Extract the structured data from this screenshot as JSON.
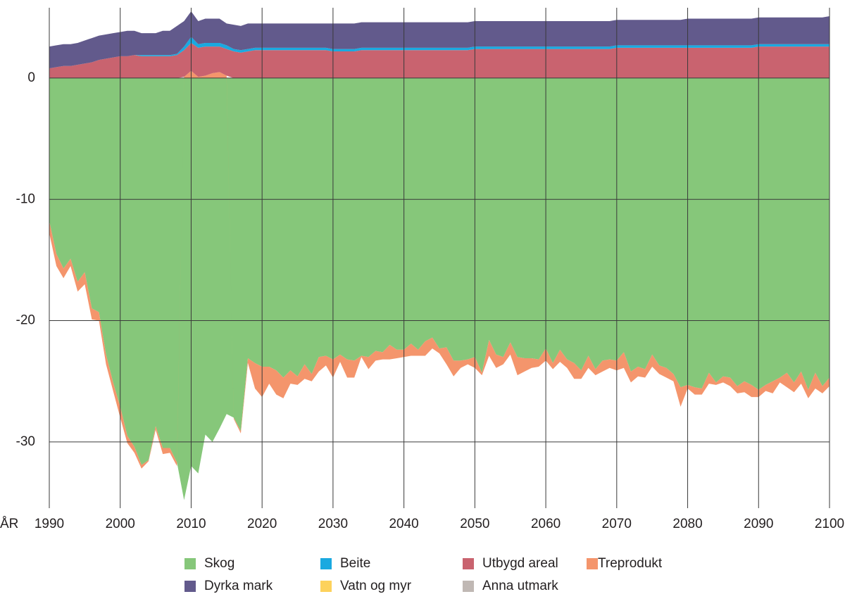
{
  "chart_data": {
    "type": "area",
    "stacked": true,
    "x_label": "ÅR",
    "x": [
      1990,
      1991,
      1992,
      1993,
      1994,
      1995,
      1996,
      1997,
      1998,
      1999,
      2000,
      2001,
      2002,
      2003,
      2004,
      2005,
      2006,
      2007,
      2008,
      2009,
      2010,
      2011,
      2012,
      2013,
      2014,
      2015,
      2016,
      2017,
      2018,
      2019,
      2020,
      2021,
      2022,
      2023,
      2024,
      2025,
      2026,
      2027,
      2028,
      2029,
      2030,
      2031,
      2032,
      2033,
      2034,
      2035,
      2036,
      2037,
      2038,
      2039,
      2040,
      2041,
      2042,
      2043,
      2044,
      2045,
      2046,
      2047,
      2048,
      2049,
      2050,
      2051,
      2052,
      2053,
      2054,
      2055,
      2056,
      2057,
      2058,
      2059,
      2060,
      2061,
      2062,
      2063,
      2064,
      2065,
      2066,
      2067,
      2068,
      2069,
      2070,
      2071,
      2072,
      2073,
      2074,
      2075,
      2076,
      2077,
      2078,
      2079,
      2080,
      2081,
      2082,
      2083,
      2084,
      2085,
      2086,
      2087,
      2088,
      2089,
      2090,
      2091,
      2092,
      2093,
      2094,
      2095,
      2096,
      2097,
      2098,
      2099,
      2100
    ],
    "series": [
      {
        "name": "Skog",
        "color": "#86c77a",
        "values": [
          -11.8,
          -14.5,
          -15.7,
          -14.9,
          -16.8,
          -16.0,
          -19.0,
          -19.3,
          -22.8,
          -25.1,
          -27.1,
          -29.5,
          -30.4,
          -31.9,
          -31.5,
          -28.7,
          -30.5,
          -30.5,
          -31.7,
          -34.8,
          -32.0,
          -32.6,
          -29.4,
          -30.0,
          -28.9,
          -27.7,
          -28.0,
          -29.1,
          -23.1,
          -23.5,
          -23.8,
          -23.8,
          -24.1,
          -24.7,
          -24.1,
          -24.6,
          -23.6,
          -24.4,
          -23.0,
          -22.9,
          -23.2,
          -22.8,
          -23.2,
          -23.3,
          -22.9,
          -23.0,
          -22.5,
          -22.6,
          -22.0,
          -22.4,
          -22.4,
          -21.9,
          -22.4,
          -21.7,
          -21.4,
          -22.3,
          -22.2,
          -23.3,
          -23.3,
          -23.2,
          -23.0,
          -24.3,
          -21.6,
          -22.8,
          -23.0,
          -21.8,
          -23.0,
          -23.1,
          -23.1,
          -23.2,
          -22.3,
          -23.5,
          -22.4,
          -23.2,
          -23.5,
          -24.1,
          -22.9,
          -24.0,
          -23.3,
          -23.2,
          -23.3,
          -22.6,
          -24.2,
          -23.8,
          -24.0,
          -22.8,
          -23.7,
          -23.9,
          -24.4,
          -25.5,
          -25.3,
          -25.5,
          -25.6,
          -24.3,
          -25.1,
          -24.6,
          -24.7,
          -25.4,
          -25.0,
          -25.3,
          -25.7,
          -25.3,
          -25.0,
          -24.7,
          -24.3,
          -25.1,
          -24.2,
          -25.7,
          -24.3,
          -25.4,
          -24.7
        ]
      },
      {
        "name": "Treprodukt",
        "color": "#f4956c",
        "values": [
          -1.0,
          -1.0,
          -0.8,
          -0.6,
          -0.8,
          -1.0,
          -0.9,
          -0.7,
          -0.8,
          -0.7,
          -0.9,
          -0.6,
          -0.5,
          -0.3,
          -0.1,
          -0.3,
          -0.5,
          -0.4,
          -0.3,
          0.1,
          0.6,
          0.1,
          0.2,
          0.4,
          0.5,
          0.2,
          -0.1,
          -0.2,
          -0.4,
          -2.1,
          -2.5,
          -1.4,
          -2.0,
          -1.7,
          -1.1,
          -0.7,
          -1.2,
          -0.6,
          -1.2,
          -0.8,
          -1.5,
          -0.6,
          -1.5,
          -1.4,
          -0.1,
          -1.0,
          -0.8,
          -0.6,
          -1.2,
          -0.7,
          -0.6,
          -1.0,
          -0.5,
          -1.2,
          -0.9,
          -0.4,
          -1.4,
          -1.3,
          -0.6,
          -0.4,
          -0.9,
          -0.2,
          -1.3,
          -1.1,
          -0.6,
          -1.0,
          -1.5,
          -1.1,
          -0.8,
          -0.6,
          -1.0,
          -0.5,
          -1.0,
          -0.7,
          -1.3,
          -0.7,
          -1.0,
          -0.5,
          -0.9,
          -0.7,
          -0.8,
          -1.3,
          -0.9,
          -0.8,
          -0.7,
          -1.0,
          -0.7,
          -0.8,
          -0.6,
          -1.6,
          -0.3,
          -0.6,
          -0.5,
          -0.9,
          -0.2,
          -0.5,
          -0.7,
          -0.6,
          -0.9,
          -1.0,
          -0.6,
          -0.5,
          -1.0,
          -0.4,
          -1.2,
          -0.8,
          -1.0,
          -0.7,
          -1.3,
          -0.6,
          -0.7
        ]
      },
      {
        "name": "Utbygd areal",
        "color": "#c9636f",
        "values": [
          0.8,
          0.9,
          1.0,
          1.0,
          1.1,
          1.2,
          1.3,
          1.5,
          1.6,
          1.7,
          1.8,
          1.8,
          1.9,
          1.8,
          1.8,
          1.8,
          1.8,
          1.8,
          1.9,
          2.2,
          2.3,
          2.4,
          2.4,
          2.2,
          2.1,
          2.2,
          2.2,
          2.1,
          2.2,
          2.3,
          2.3,
          2.3,
          2.3,
          2.3,
          2.3,
          2.3,
          2.3,
          2.3,
          2.3,
          2.3,
          2.2,
          2.2,
          2.2,
          2.2,
          2.3,
          2.3,
          2.3,
          2.3,
          2.3,
          2.3,
          2.3,
          2.3,
          2.3,
          2.3,
          2.3,
          2.3,
          2.3,
          2.3,
          2.3,
          2.3,
          2.4,
          2.4,
          2.4,
          2.4,
          2.4,
          2.4,
          2.4,
          2.4,
          2.4,
          2.4,
          2.4,
          2.4,
          2.4,
          2.4,
          2.4,
          2.4,
          2.4,
          2.4,
          2.4,
          2.4,
          2.5,
          2.5,
          2.5,
          2.5,
          2.5,
          2.5,
          2.5,
          2.5,
          2.5,
          2.5,
          2.5,
          2.5,
          2.5,
          2.5,
          2.5,
          2.5,
          2.5,
          2.5,
          2.5,
          2.5,
          2.6,
          2.6,
          2.6,
          2.6,
          2.6,
          2.6,
          2.6,
          2.6,
          2.6,
          2.6,
          2.6
        ]
      },
      {
        "name": "Beite",
        "color": "#1aa9e0",
        "values": [
          0,
          0,
          0,
          0,
          0,
          0,
          0,
          0,
          0,
          0,
          0,
          0,
          0,
          0.1,
          0.1,
          0.1,
          0.1,
          0.1,
          0.1,
          0.3,
          0.5,
          0.3,
          0.3,
          0.3,
          0.3,
          0.3,
          0.2,
          0.2,
          0.2,
          0.2,
          0.2,
          0.2,
          0.2,
          0.2,
          0.2,
          0.2,
          0.2,
          0.2,
          0.2,
          0.2,
          0.2,
          0.2,
          0.2,
          0.2,
          0.2,
          0.2,
          0.2,
          0.2,
          0.2,
          0.2,
          0.2,
          0.2,
          0.2,
          0.2,
          0.2,
          0.2,
          0.2,
          0.2,
          0.2,
          0.2,
          0.2,
          0.2,
          0.2,
          0.2,
          0.2,
          0.2,
          0.2,
          0.2,
          0.2,
          0.2,
          0.2,
          0.2,
          0.2,
          0.2,
          0.2,
          0.2,
          0.2,
          0.2,
          0.2,
          0.2,
          0.2,
          0.2,
          0.2,
          0.2,
          0.2,
          0.2,
          0.2,
          0.2,
          0.2,
          0.2,
          0.2,
          0.2,
          0.2,
          0.2,
          0.2,
          0.2,
          0.2,
          0.2,
          0.2,
          0.2,
          0.2,
          0.2,
          0.2,
          0.2,
          0.2,
          0.2,
          0.2,
          0.2,
          0.2,
          0.2,
          0.2
        ]
      },
      {
        "name": "Vatn og myr",
        "color": "#fdd25c",
        "values": [
          0,
          0,
          0,
          0,
          0,
          0,
          0,
          0,
          0,
          0,
          0,
          0,
          0,
          0,
          0,
          0,
          0,
          0,
          0,
          0,
          0,
          0,
          0,
          0,
          0,
          0,
          0,
          0,
          0,
          0,
          0,
          0,
          0,
          0,
          0,
          0,
          0,
          0,
          0,
          0,
          0,
          0,
          0,
          0,
          0,
          0,
          0,
          0,
          0,
          0,
          0,
          0,
          0,
          0,
          0,
          0,
          0,
          0,
          0,
          0,
          0,
          0,
          0,
          0,
          0,
          0,
          0,
          0,
          0,
          0,
          0,
          0,
          0,
          0,
          0,
          0,
          0,
          0,
          0,
          0,
          0,
          0,
          0,
          0,
          0,
          0,
          0,
          0,
          0,
          0,
          0,
          0,
          0,
          0,
          0,
          0,
          0,
          0,
          0,
          0,
          0,
          0,
          0,
          0,
          0,
          0,
          0,
          0,
          0,
          0,
          0
        ]
      },
      {
        "name": "Anna utmark",
        "color": "#c0b8b4",
        "values": [
          0,
          0,
          0,
          0,
          0,
          0,
          0,
          0,
          0,
          0,
          0,
          0,
          0,
          0,
          0,
          0,
          0,
          0,
          0,
          0,
          0,
          0,
          0,
          0,
          0,
          0,
          0,
          0,
          0,
          0,
          0,
          0,
          0,
          0,
          0,
          0,
          0,
          0,
          0,
          0,
          0,
          0,
          0,
          0,
          0,
          0,
          0,
          0,
          0,
          0,
          0,
          0,
          0,
          0,
          0,
          0,
          0,
          0,
          0,
          0,
          0,
          0,
          0,
          0,
          0,
          0,
          0,
          0,
          0,
          0,
          0,
          0,
          0,
          0,
          0,
          0,
          0,
          0,
          0,
          0,
          0,
          0,
          0,
          0,
          0,
          0,
          0,
          0,
          0,
          0,
          0,
          0,
          0,
          0,
          0,
          0,
          0,
          0,
          0,
          0,
          0,
          0,
          0,
          0,
          0,
          0,
          0,
          0,
          0,
          0,
          0
        ]
      },
      {
        "name": "Dyrka mark",
        "color": "#625a8c",
        "values": [
          1.8,
          1.8,
          1.8,
          1.8,
          1.8,
          1.9,
          2.0,
          2.0,
          2.0,
          2.0,
          2.0,
          2.1,
          2.0,
          1.8,
          1.8,
          1.8,
          2.0,
          2.0,
          2.3,
          2.1,
          2.1,
          1.9,
          2.0,
          2.0,
          2.0,
          1.8,
          2.0,
          2.0,
          2.1,
          2.0,
          2.0,
          2.0,
          2.0,
          2.0,
          2.0,
          2.0,
          2.0,
          2.0,
          2.0,
          2.0,
          2.1,
          2.1,
          2.1,
          2.1,
          2.1,
          2.1,
          2.1,
          2.1,
          2.1,
          2.1,
          2.1,
          2.1,
          2.1,
          2.1,
          2.1,
          2.1,
          2.1,
          2.1,
          2.1,
          2.1,
          2.1,
          2.1,
          2.1,
          2.1,
          2.1,
          2.1,
          2.1,
          2.1,
          2.1,
          2.1,
          2.1,
          2.1,
          2.1,
          2.1,
          2.1,
          2.1,
          2.1,
          2.1,
          2.1,
          2.1,
          2.1,
          2.1,
          2.1,
          2.1,
          2.1,
          2.1,
          2.1,
          2.1,
          2.1,
          2.1,
          2.2,
          2.2,
          2.2,
          2.2,
          2.2,
          2.2,
          2.2,
          2.2,
          2.2,
          2.2,
          2.2,
          2.2,
          2.2,
          2.2,
          2.2,
          2.2,
          2.2,
          2.2,
          2.2,
          2.2,
          2.3
        ]
      }
    ],
    "xlim": [
      1990,
      2100
    ],
    "xticks": [
      1990,
      2000,
      2010,
      2020,
      2030,
      2040,
      2050,
      2060,
      2070,
      2080,
      2090,
      2100
    ],
    "ylim": [
      -35,
      5.8
    ],
    "yticks": [
      -30,
      -20,
      -10,
      0
    ],
    "grid": true
  }
}
